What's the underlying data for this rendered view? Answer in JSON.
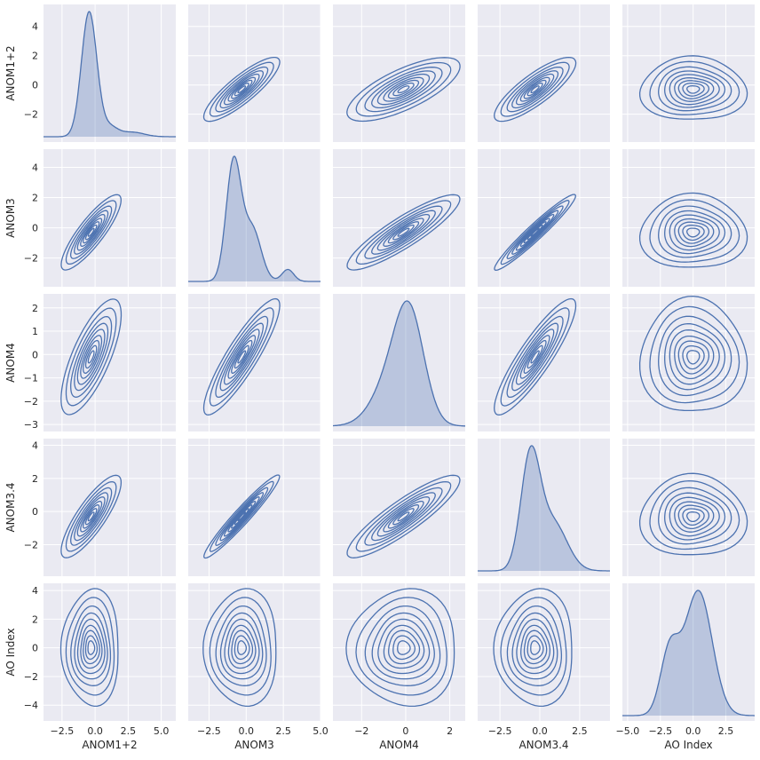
{
  "chart_data": {
    "type": "pairplot",
    "kind": "kde",
    "diag_kind": "kde",
    "style": {
      "panel_bg": "#eaeaf2",
      "grid_color": "#ffffff",
      "line_color": "#4c72b0",
      "fill_color": "#4c72b0"
    },
    "variables": [
      "ANOM1+2",
      "ANOM3",
      "ANOM4",
      "ANOM3.4",
      "AO Index"
    ],
    "x_axes": [
      {
        "range": [
          -3.9,
          6.1
        ],
        "ticks": [
          -2.5,
          0.0,
          2.5,
          5.0
        ],
        "tick_labels": [
          "−2.5",
          "0.0",
          "2.5",
          "5.0"
        ]
      },
      {
        "range": [
          -3.9,
          5.0
        ],
        "ticks": [
          -2.5,
          0.0,
          2.5,
          5.0
        ],
        "tick_labels": [
          "−2.5",
          "0.0",
          "2.5",
          "5.0"
        ]
      },
      {
        "range": [
          -3.3,
          2.7
        ],
        "ticks": [
          -2,
          0,
          2
        ],
        "tick_labels": [
          "−2",
          "0",
          "2"
        ]
      },
      {
        "range": [
          -3.9,
          4.4
        ],
        "ticks": [
          -2.5,
          0.0,
          2.5
        ],
        "tick_labels": [
          "−2.5",
          "0.0",
          "2.5"
        ]
      },
      {
        "range": [
          -5.4,
          4.7
        ],
        "ticks": [
          -5.0,
          -2.5,
          0.0,
          2.5
        ],
        "tick_labels": [
          "−5.0",
          "−2.5",
          "0.0",
          "2.5"
        ]
      }
    ],
    "y_axes": [
      {
        "range": [
          -3.9,
          5.5
        ],
        "ticks": [
          -2,
          0,
          2,
          4
        ],
        "tick_labels": [
          "−2",
          "0",
          "2",
          "4"
        ]
      },
      {
        "range": [
          -3.9,
          5.2
        ],
        "ticks": [
          -2,
          0,
          2,
          4
        ],
        "tick_labels": [
          "−2",
          "0",
          "2",
          "4"
        ]
      },
      {
        "range": [
          -3.3,
          2.6
        ],
        "ticks": [
          -3,
          -2,
          -1,
          0,
          1,
          2
        ],
        "tick_labels": [
          "−3",
          "−2",
          "−1",
          "0",
          "1",
          "2"
        ]
      },
      {
        "range": [
          -3.9,
          4.4
        ],
        "ticks": [
          -2,
          0,
          2,
          4
        ],
        "tick_labels": [
          "−2",
          "0",
          "2",
          "4"
        ]
      },
      {
        "range": [
          -5.1,
          4.5
        ],
        "ticks": [
          -4,
          -2,
          0,
          2,
          4
        ],
        "tick_labels": [
          "−4",
          "−2",
          "0",
          "2",
          "4"
        ]
      }
    ],
    "stats": [
      {
        "mean": -0.3,
        "sd": 0.75
      },
      {
        "mean": -0.3,
        "sd": 0.85
      },
      {
        "mean": -0.1,
        "sd": 0.85
      },
      {
        "mean": -0.3,
        "sd": 0.85
      },
      {
        "mean": 0.0,
        "sd": 1.3
      }
    ],
    "diagonal": [
      {
        "components": [
          {
            "w": 0.88,
            "mu": -0.45,
            "sd": 0.58
          },
          {
            "w": 0.07,
            "mu": 1.1,
            "sd": 0.6
          },
          {
            "w": 0.05,
            "mu": 2.8,
            "sd": 0.9
          }
        ]
      },
      {
        "components": [
          {
            "w": 0.62,
            "mu": -0.85,
            "sd": 0.5
          },
          {
            "w": 0.33,
            "mu": 0.4,
            "sd": 0.6
          },
          {
            "w": 0.05,
            "mu": 2.8,
            "sd": 0.4
          }
        ]
      },
      {
        "components": [
          {
            "w": 0.55,
            "mu": 0.2,
            "sd": 0.65
          },
          {
            "w": 0.45,
            "mu": -0.5,
            "sd": 0.9
          }
        ]
      },
      {
        "components": [
          {
            "w": 0.6,
            "mu": -0.6,
            "sd": 0.6
          },
          {
            "w": 0.4,
            "mu": 0.8,
            "sd": 0.9
          }
        ]
      },
      {
        "components": [
          {
            "w": 0.25,
            "mu": -1.8,
            "sd": 0.7
          },
          {
            "w": 0.75,
            "mu": 0.4,
            "sd": 1.05
          }
        ]
      }
    ]
  }
}
